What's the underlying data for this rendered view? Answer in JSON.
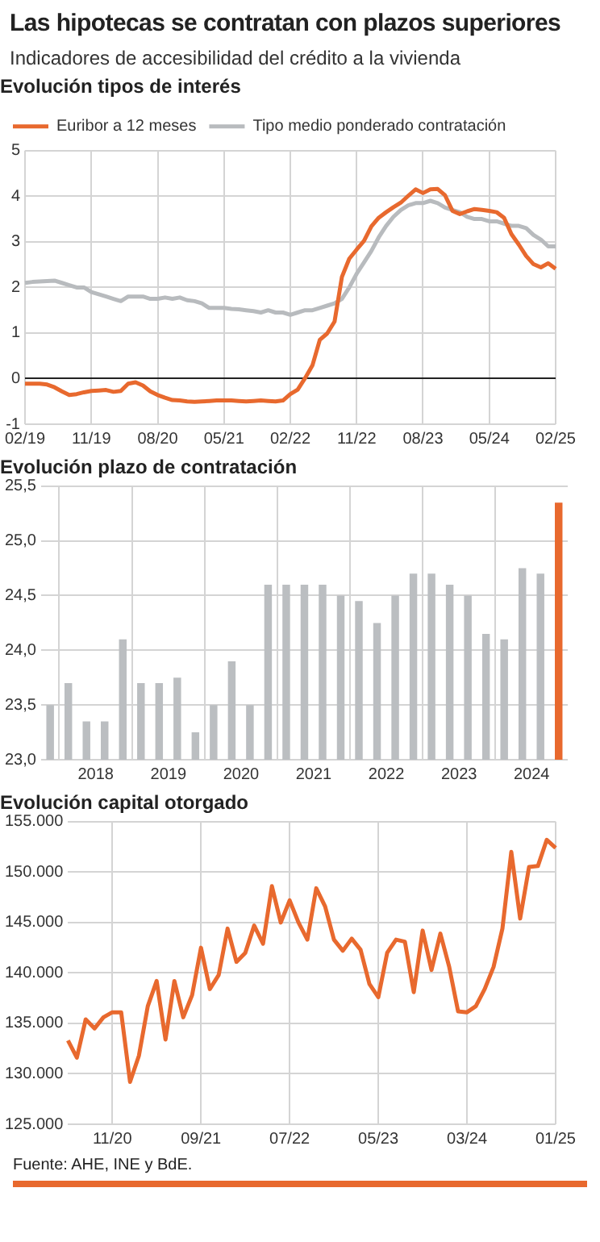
{
  "chart_data": [
    {
      "type": "other",
      "title": "Las hipotecas se contratan con plazos superiores",
      "subtitle": "Indicadores de accesibilidad del crédito a la vivienda"
    },
    {
      "type": "line",
      "title": "Evolución tipos de interés",
      "legend": "top left",
      "grid": true,
      "categories": [
        "02/19",
        null,
        null,
        null,
        null,
        null,
        null,
        null,
        null,
        "11/19",
        null,
        null,
        null,
        null,
        null,
        null,
        null,
        null,
        "08/20",
        null,
        null,
        null,
        null,
        null,
        null,
        null,
        null,
        "05/21",
        null,
        null,
        null,
        null,
        null,
        null,
        null,
        null,
        "02/22",
        null,
        null,
        null,
        null,
        null,
        null,
        null,
        null,
        "11/22",
        null,
        null,
        null,
        null,
        null,
        null,
        null,
        null,
        "08/23",
        null,
        null,
        null,
        null,
        null,
        null,
        null,
        null,
        "05/24",
        null,
        null,
        null,
        null,
        null,
        null,
        null,
        null,
        "02/25"
      ],
      "ylim": [
        -1,
        5
      ],
      "yticks": [
        -1,
        0,
        1,
        2,
        3,
        4,
        5
      ],
      "series": [
        {
          "name": "Euribor a 12 meses",
          "color": "#e8692e",
          "values": [
            -0.11,
            -0.11,
            -0.11,
            -0.13,
            -0.19,
            -0.28,
            -0.36,
            -0.34,
            -0.3,
            -0.27,
            -0.26,
            -0.25,
            -0.29,
            -0.27,
            -0.11,
            -0.08,
            -0.15,
            -0.28,
            -0.36,
            -0.42,
            -0.47,
            -0.48,
            -0.5,
            -0.51,
            -0.5,
            -0.49,
            -0.48,
            -0.48,
            -0.48,
            -0.49,
            -0.5,
            -0.49,
            -0.48,
            -0.49,
            -0.5,
            -0.48,
            -0.34,
            -0.24,
            0.01,
            0.29,
            0.85,
            0.99,
            1.25,
            2.23,
            2.63,
            2.83,
            3.02,
            3.34,
            3.53,
            3.65,
            3.76,
            3.86,
            4.01,
            4.15,
            4.07,
            4.15,
            4.16,
            4.02,
            3.68,
            3.61,
            3.67,
            3.72,
            3.7,
            3.68,
            3.65,
            3.53,
            3.17,
            2.94,
            2.69,
            2.51,
            2.44,
            2.53,
            2.41
          ]
        },
        {
          "name": "Tipo medio ponderado contratación",
          "color": "#b8bbbe",
          "values": [
            2.1,
            2.12,
            2.13,
            2.14,
            2.15,
            2.1,
            2.05,
            2.0,
            2.0,
            1.9,
            1.85,
            1.8,
            1.75,
            1.7,
            1.8,
            1.8,
            1.8,
            1.75,
            1.75,
            1.78,
            1.75,
            1.78,
            1.72,
            1.7,
            1.65,
            1.55,
            1.55,
            1.55,
            1.53,
            1.52,
            1.5,
            1.48,
            1.45,
            1.5,
            1.45,
            1.45,
            1.4,
            1.45,
            1.5,
            1.5,
            1.55,
            1.6,
            1.65,
            1.75,
            2.0,
            2.3,
            2.55,
            2.8,
            3.1,
            3.35,
            3.55,
            3.7,
            3.8,
            3.85,
            3.85,
            3.9,
            3.85,
            3.75,
            3.7,
            3.65,
            3.55,
            3.5,
            3.5,
            3.45,
            3.45,
            3.4,
            3.35,
            3.35,
            3.3,
            3.15,
            3.05,
            2.9,
            2.9
          ]
        }
      ]
    },
    {
      "type": "bar",
      "title": "Evolución plazo de contratación",
      "grid": true,
      "categories": [
        null,
        null,
        null,
        "2018",
        null,
        null,
        null,
        "2019",
        null,
        null,
        null,
        "2020",
        null,
        null,
        null,
        "2021",
        null,
        null,
        null,
        "2022",
        null,
        null,
        null,
        "2023",
        null,
        null,
        null,
        "2024",
        null
      ],
      "values": [
        23.5,
        23.7,
        23.35,
        23.35,
        24.1,
        23.7,
        23.7,
        23.75,
        23.25,
        23.5,
        23.9,
        23.5,
        24.6,
        24.6,
        24.6,
        24.6,
        24.5,
        24.45,
        24.25,
        24.5,
        24.7,
        24.7,
        24.6,
        24.5,
        24.15,
        24.1,
        24.75,
        24.7,
        25.35
      ],
      "colors": [
        "#bbbec1",
        "#bbbec1",
        "#bbbec1",
        "#bbbec1",
        "#bbbec1",
        "#bbbec1",
        "#bbbec1",
        "#bbbec1",
        "#bbbec1",
        "#bbbec1",
        "#bbbec1",
        "#bbbec1",
        "#bbbec1",
        "#bbbec1",
        "#bbbec1",
        "#bbbec1",
        "#bbbec1",
        "#bbbec1",
        "#bbbec1",
        "#bbbec1",
        "#bbbec1",
        "#bbbec1",
        "#bbbec1",
        "#bbbec1",
        "#bbbec1",
        "#bbbec1",
        "#bbbec1",
        "#bbbec1",
        "#e8692e"
      ],
      "ylim": [
        23,
        25.5
      ],
      "yticks": [
        {
          "value": 23,
          "label": "23,0"
        },
        {
          "value": 23.5,
          "label": "23,5"
        },
        {
          "value": 24,
          "label": "24,0"
        },
        {
          "value": 24.5,
          "label": "24,5"
        },
        {
          "value": 25,
          "label": "25,0"
        },
        {
          "value": 25.5,
          "label": "25,5"
        }
      ]
    },
    {
      "type": "line",
      "title": "Evolución capital otorgado",
      "grid": true,
      "categories": [
        null,
        null,
        null,
        null,
        null,
        "11/20",
        null,
        null,
        null,
        null,
        null,
        null,
        null,
        null,
        null,
        "09/21",
        null,
        null,
        null,
        null,
        null,
        null,
        null,
        null,
        null,
        "07/22",
        null,
        null,
        null,
        null,
        null,
        null,
        null,
        null,
        null,
        "05/23",
        null,
        null,
        null,
        null,
        null,
        null,
        null,
        null,
        null,
        "03/24",
        null,
        null,
        null,
        null,
        null,
        null,
        null,
        null,
        null,
        "01/25"
      ],
      "series": [
        {
          "color": "#e8692e",
          "values": [
            133300,
            131600,
            135400,
            134500,
            135600,
            136100,
            136100,
            129200,
            131800,
            136700,
            139200,
            133400,
            139200,
            135600,
            137800,
            142500,
            138400,
            139800,
            144400,
            141100,
            142000,
            144700,
            142900,
            148600,
            145000,
            147200,
            145000,
            143300,
            148400,
            146600,
            143300,
            142200,
            143400,
            142300,
            138900,
            137600,
            142000,
            143300,
            143100,
            138100,
            144200,
            140300,
            143900,
            140600,
            136200,
            136100,
            136700,
            138400,
            140600,
            144400,
            152000,
            145400,
            150500,
            150600,
            153200,
            152400
          ]
        }
      ],
      "ylim": [
        125000,
        155000
      ],
      "yticks": [
        {
          "value": 125000,
          "label": "125.000"
        },
        {
          "value": 130000,
          "label": "130.000"
        },
        {
          "value": 135000,
          "label": "135.000"
        },
        {
          "value": 140000,
          "label": "140.000"
        },
        {
          "value": 145000,
          "label": "145.000"
        },
        {
          "value": 150000,
          "label": "150.000"
        },
        {
          "value": 155000,
          "label": "155.000"
        }
      ],
      "annotations": [
        "Fuente: AHE, INE y BdE."
      ]
    }
  ]
}
